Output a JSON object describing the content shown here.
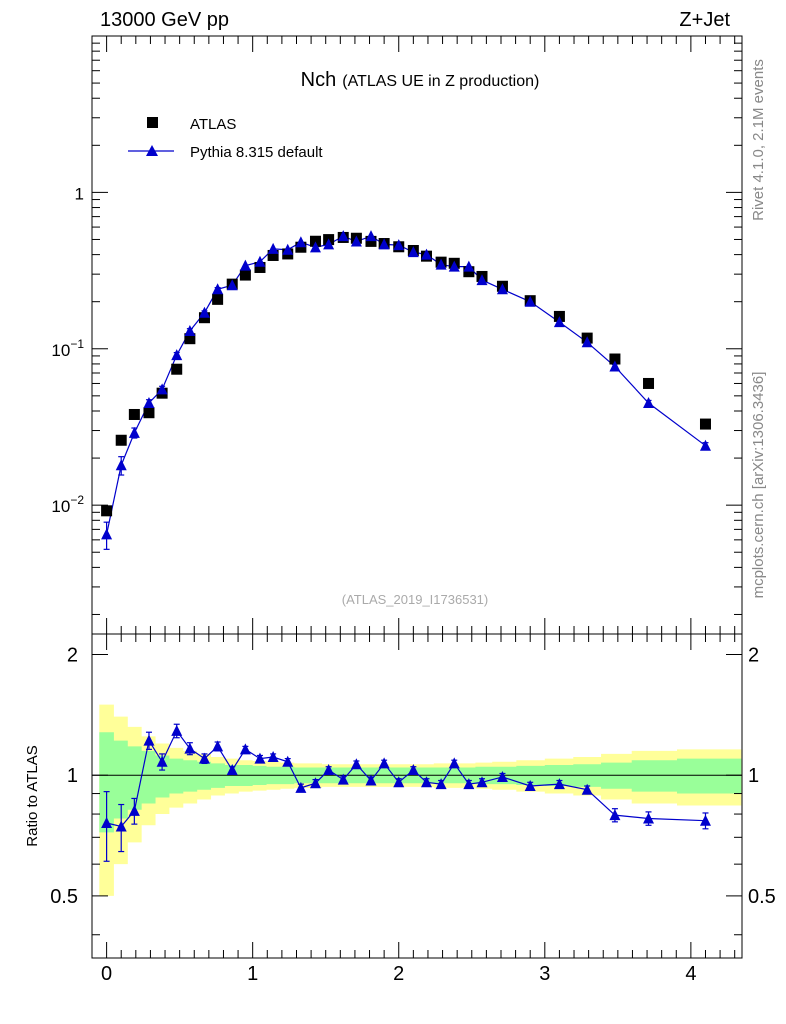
{
  "header": {
    "left": "13000 GeV pp",
    "right": "Z+Jet"
  },
  "side_text": {
    "top": "Rivet 4.1.0,  2.1M events",
    "bottom": "mcplots.cern.ch [arXiv:1306.3436]"
  },
  "colors": {
    "data": "#000000",
    "mc": "#0000cc",
    "band_inner": "#99ff99",
    "band_outer": "#ffff99"
  },
  "chart_data": {
    "type": "scatter",
    "title": "Nch",
    "subtitle": "(ATLAS UE in Z production)",
    "analysis_id": "(ATLAS_2019_I1736531)",
    "xlim": [
      -0.1,
      4.35
    ],
    "ylim_main": [
      0.0015,
      10
    ],
    "ylim_ratio": [
      0.35,
      2.25
    ],
    "ylabel_ratio": "Ratio to ATLAS",
    "main_yticks": [
      {
        "label": "1",
        "mantissa": "1",
        "exp": ""
      },
      {
        "label": "10^-1",
        "mantissa": "10",
        "exp": "−1"
      },
      {
        "label": "10^-2",
        "mantissa": "10",
        "exp": "−2"
      }
    ],
    "ratio_yticks": [
      "2",
      "1",
      "0.5"
    ],
    "xticks": [
      "0",
      "1",
      "2",
      "3",
      "4"
    ],
    "legend": [
      {
        "name": "ATLAS",
        "marker": "square"
      },
      {
        "name": "Pythia 8.315 default",
        "marker": "triangle"
      }
    ],
    "x": [
      0.0,
      0.1,
      0.19,
      0.29,
      0.38,
      0.48,
      0.57,
      0.67,
      0.76,
      0.86,
      0.95,
      1.05,
      1.14,
      1.24,
      1.33,
      1.43,
      1.52,
      1.62,
      1.71,
      1.81,
      1.9,
      2.0,
      2.1,
      2.19,
      2.29,
      2.38,
      2.48,
      2.57,
      2.71,
      2.9,
      3.1,
      3.29,
      3.48,
      3.71,
      4.1
    ],
    "series": [
      {
        "name": "ATLAS",
        "values": [
          0.0092,
          0.026,
          0.038,
          0.039,
          0.052,
          0.074,
          0.116,
          0.158,
          0.207,
          0.259,
          0.296,
          0.331,
          0.395,
          0.404,
          0.446,
          0.487,
          0.499,
          0.515,
          0.509,
          0.486,
          0.471,
          0.449,
          0.425,
          0.391,
          0.358,
          0.352,
          0.311,
          0.29,
          0.251,
          0.203,
          0.161,
          0.117,
          0.086,
          0.06,
          0.033
        ]
      },
      {
        "name": "Pythia 8.315 default",
        "values": [
          0.0065,
          0.018,
          0.029,
          0.045,
          0.055,
          0.091,
          0.13,
          0.17,
          0.24,
          0.255,
          0.34,
          0.36,
          0.435,
          0.43,
          0.48,
          0.445,
          0.465,
          0.525,
          0.485,
          0.525,
          0.465,
          0.46,
          0.415,
          0.4,
          0.345,
          0.335,
          0.335,
          0.275,
          0.24,
          0.2,
          0.148,
          0.11,
          0.077,
          0.045,
          0.024
        ]
      }
    ],
    "ratio": [
      0.76,
      0.745,
      0.815,
      1.22,
      1.08,
      1.29,
      1.165,
      1.1,
      1.18,
      1.03,
      1.16,
      1.1,
      1.11,
      1.08,
      0.93,
      0.955,
      1.03,
      0.975,
      1.065,
      0.97,
      1.07,
      0.96,
      1.03,
      0.96,
      0.95,
      1.07,
      0.95,
      0.96,
      0.99,
      0.94,
      0.95,
      0.92,
      0.795,
      0.78,
      0.77
    ],
    "ratio_err": [
      0.15,
      0.1,
      0.06,
      0.06,
      0.05,
      0.05,
      0.04,
      0.03,
      0.03,
      0.02,
      0.02,
      0.02,
      0.02,
      0.02,
      0.02,
      0.02,
      0.02,
      0.02,
      0.02,
      0.02,
      0.02,
      0.02,
      0.02,
      0.02,
      0.02,
      0.02,
      0.02,
      0.02,
      0.02,
      0.02,
      0.02,
      0.02,
      0.03,
      0.03,
      0.035
    ],
    "band_green_halfwidth": [
      0.28,
      0.22,
      0.18,
      0.15,
      0.12,
      0.1,
      0.09,
      0.08,
      0.07,
      0.06,
      0.06,
      0.055,
      0.05,
      0.05,
      0.045,
      0.045,
      0.045,
      0.045,
      0.045,
      0.045,
      0.045,
      0.045,
      0.045,
      0.045,
      0.045,
      0.045,
      0.045,
      0.05,
      0.05,
      0.055,
      0.06,
      0.065,
      0.075,
      0.09,
      0.1
    ],
    "band_yellow_halfwidth": [
      0.5,
      0.4,
      0.32,
      0.25,
      0.2,
      0.17,
      0.15,
      0.13,
      0.11,
      0.1,
      0.09,
      0.085,
      0.08,
      0.075,
      0.07,
      0.07,
      0.065,
      0.065,
      0.065,
      0.065,
      0.065,
      0.065,
      0.065,
      0.065,
      0.07,
      0.07,
      0.07,
      0.075,
      0.08,
      0.09,
      0.1,
      0.11,
      0.13,
      0.15,
      0.16
    ]
  }
}
